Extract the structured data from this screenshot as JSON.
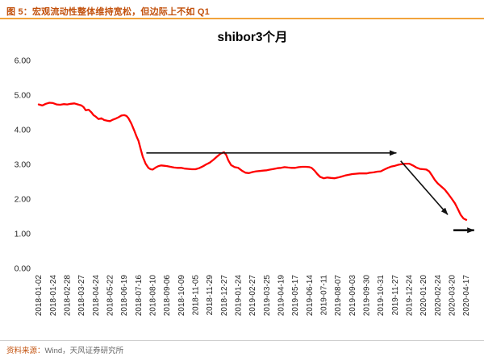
{
  "header": {
    "caption": "图 5：宏观流动性整体维持宽松，但边际上不如 Q1"
  },
  "footer": {
    "source_label": "资料来源：",
    "source_text": "Wind，天风证券研究所"
  },
  "colors": {
    "header_text": "#C2500B",
    "header_rule": "#F2A33C",
    "line": "#FF0000",
    "arrow": "#111111",
    "axis_text": "#262626",
    "footer_rule": "#CFCFCF",
    "source_label_color": "#C2500B",
    "source_text_color": "#666666"
  },
  "chart_data": {
    "type": "line",
    "title": "shibor3个月",
    "xlabel": "",
    "ylabel": "",
    "ylim": [
      0,
      6
    ],
    "grid": false,
    "legend_position": "none",
    "yticks": [
      0,
      1,
      2,
      3,
      4,
      5,
      6
    ],
    "ytick_labels": [
      "0.00",
      "1.00",
      "2.00",
      "3.00",
      "4.00",
      "5.00",
      "6.00"
    ],
    "x_tick_labels": [
      "2018-01-02",
      "2018-01-24",
      "2018-02-28",
      "2018-03-27",
      "2018-04-24",
      "2018-05-22",
      "2018-06-19",
      "2018-07-16",
      "2018-08-10",
      "2018-09-06",
      "2018-10-09",
      "2018-11-05",
      "2018-11-29",
      "2018-12-27",
      "2019-01-24",
      "2019-02-27",
      "2019-03-25",
      "2019-04-19",
      "2019-05-17",
      "2019-06-14",
      "2019-07-11",
      "2019-08-07",
      "2019-09-03",
      "2019-09-30",
      "2019-10-31",
      "2019-11-27",
      "2019-12-24",
      "2020-01-20",
      "2020-02-24",
      "2020-03-20",
      "2020-04-17"
    ],
    "series": [
      {
        "name": "shibor3个月",
        "color": "#FF0000",
        "points": [
          [
            0,
            4.73
          ],
          [
            0.25,
            4.7
          ],
          [
            0.5,
            4.75
          ],
          [
            0.75,
            4.78
          ],
          [
            1,
            4.77
          ],
          [
            1.25,
            4.73
          ],
          [
            1.5,
            4.72
          ],
          [
            1.75,
            4.74
          ],
          [
            2,
            4.73
          ],
          [
            2.25,
            4.75
          ],
          [
            2.5,
            4.76
          ],
          [
            2.75,
            4.73
          ],
          [
            3,
            4.7
          ],
          [
            3.15,
            4.65
          ],
          [
            3.3,
            4.56
          ],
          [
            3.5,
            4.58
          ],
          [
            3.7,
            4.5
          ],
          [
            3.85,
            4.42
          ],
          [
            4,
            4.38
          ],
          [
            4.2,
            4.31
          ],
          [
            4.4,
            4.33
          ],
          [
            4.6,
            4.28
          ],
          [
            4.8,
            4.26
          ],
          [
            5,
            4.25
          ],
          [
            5.2,
            4.29
          ],
          [
            5.4,
            4.32
          ],
          [
            5.6,
            4.36
          ],
          [
            5.8,
            4.41
          ],
          [
            6,
            4.42
          ],
          [
            6.15,
            4.4
          ],
          [
            6.3,
            4.33
          ],
          [
            6.5,
            4.18
          ],
          [
            6.7,
            3.98
          ],
          [
            6.85,
            3.82
          ],
          [
            7,
            3.68
          ],
          [
            7.15,
            3.45
          ],
          [
            7.3,
            3.22
          ],
          [
            7.5,
            3.02
          ],
          [
            7.7,
            2.9
          ],
          [
            7.85,
            2.86
          ],
          [
            8,
            2.85
          ],
          [
            8.2,
            2.91
          ],
          [
            8.4,
            2.95
          ],
          [
            8.6,
            2.97
          ],
          [
            8.8,
            2.96
          ],
          [
            9,
            2.95
          ],
          [
            9.25,
            2.93
          ],
          [
            9.5,
            2.91
          ],
          [
            9.75,
            2.9
          ],
          [
            10,
            2.9
          ],
          [
            10.25,
            2.88
          ],
          [
            10.5,
            2.87
          ],
          [
            10.75,
            2.86
          ],
          [
            11,
            2.86
          ],
          [
            11.25,
            2.89
          ],
          [
            11.5,
            2.94
          ],
          [
            11.75,
            3.0
          ],
          [
            12,
            3.05
          ],
          [
            12.25,
            3.13
          ],
          [
            12.5,
            3.22
          ],
          [
            12.75,
            3.31
          ],
          [
            13,
            3.35
          ],
          [
            13.15,
            3.28
          ],
          [
            13.3,
            3.12
          ],
          [
            13.5,
            2.98
          ],
          [
            13.75,
            2.92
          ],
          [
            14,
            2.9
          ],
          [
            14.25,
            2.82
          ],
          [
            14.5,
            2.76
          ],
          [
            14.75,
            2.75
          ],
          [
            15,
            2.78
          ],
          [
            15.25,
            2.8
          ],
          [
            15.5,
            2.81
          ],
          [
            15.75,
            2.82
          ],
          [
            16,
            2.83
          ],
          [
            16.25,
            2.85
          ],
          [
            16.5,
            2.87
          ],
          [
            16.75,
            2.89
          ],
          [
            17,
            2.9
          ],
          [
            17.25,
            2.92
          ],
          [
            17.5,
            2.91
          ],
          [
            17.75,
            2.9
          ],
          [
            18,
            2.9
          ],
          [
            18.25,
            2.92
          ],
          [
            18.5,
            2.93
          ],
          [
            18.75,
            2.93
          ],
          [
            19,
            2.92
          ],
          [
            19.15,
            2.9
          ],
          [
            19.35,
            2.82
          ],
          [
            19.55,
            2.72
          ],
          [
            19.75,
            2.64
          ],
          [
            20,
            2.6
          ],
          [
            20.25,
            2.62
          ],
          [
            20.5,
            2.61
          ],
          [
            20.75,
            2.6
          ],
          [
            21,
            2.62
          ],
          [
            21.25,
            2.65
          ],
          [
            21.5,
            2.68
          ],
          [
            21.75,
            2.7
          ],
          [
            22,
            2.72
          ],
          [
            22.25,
            2.73
          ],
          [
            22.5,
            2.74
          ],
          [
            22.75,
            2.74
          ],
          [
            23,
            2.74
          ],
          [
            23.25,
            2.76
          ],
          [
            23.5,
            2.77
          ],
          [
            23.75,
            2.79
          ],
          [
            24,
            2.8
          ],
          [
            24.25,
            2.85
          ],
          [
            24.5,
            2.9
          ],
          [
            24.75,
            2.94
          ],
          [
            25,
            2.96
          ],
          [
            25.25,
            2.99
          ],
          [
            25.5,
            3.01
          ],
          [
            25.75,
            3.02
          ],
          [
            26,
            3.02
          ],
          [
            26.25,
            2.97
          ],
          [
            26.5,
            2.91
          ],
          [
            26.75,
            2.87
          ],
          [
            27,
            2.86
          ],
          [
            27.2,
            2.85
          ],
          [
            27.4,
            2.8
          ],
          [
            27.6,
            2.68
          ],
          [
            27.8,
            2.55
          ],
          [
            28,
            2.45
          ],
          [
            28.25,
            2.36
          ],
          [
            28.5,
            2.27
          ],
          [
            28.75,
            2.14
          ],
          [
            29,
            2.0
          ],
          [
            29.2,
            1.88
          ],
          [
            29.4,
            1.72
          ],
          [
            29.6,
            1.55
          ],
          [
            29.8,
            1.44
          ],
          [
            30,
            1.4
          ]
        ]
      }
    ],
    "annotations": [
      {
        "type": "arrow",
        "from": [
          7.55,
          3.33
        ],
        "to": [
          25.1,
          3.33
        ],
        "width": 1.6
      },
      {
        "type": "arrow",
        "from": [
          25.4,
          3.1
        ],
        "to": [
          28.7,
          1.55
        ],
        "width": 1.6
      },
      {
        "type": "arrow",
        "from": [
          29.1,
          1.1
        ],
        "to": [
          30.55,
          1.1
        ],
        "width": 2.6
      }
    ]
  }
}
